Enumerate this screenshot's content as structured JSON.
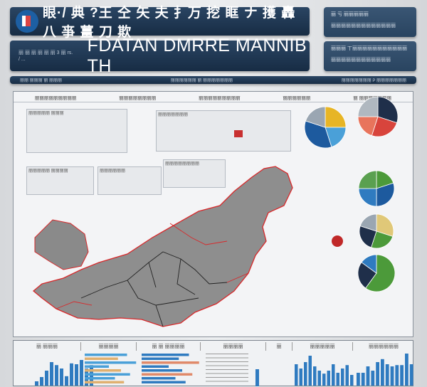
{
  "header": {
    "title": "眼·/ 典 ?王 仝 矢 夫 扌万 挖 眶 ナ 擭 轟 八 亊 薑 刀 欺",
    "subtitle": "FDATAN DMRRE MANNIB TH",
    "subtitle_small": "丽 丽 丽 丽 丽 丽 3 丽 rs. / ...",
    "right_box_1": "丽 亏 丽丽丽丽丽",
    "right_box_1_sub": "丽丽丽丽丽丽丽丽丽丽丽丽丽",
    "right_box_2": "丽丽丽 丅丽丽丽丽丽丽丽丽丽丽丽",
    "right_box_2_sub": "丽丽丽丽丽丽丽丽丽丽丽丽",
    "strip_left": "丽丽 丽丽丽 丽 丽丽丽",
    "strip_mid": "丽丽丽丽丽丽 丽 丽丽丽丽丽丽丽",
    "strip_right": "丽丽丽丽丽丽丽 P 丽丽丽丽丽丽丽"
  },
  "main": {
    "headers": [
      "丽丽丽丽丽丽丽丽丽",
      "丽丽丽丽丽丽丽丽",
      "丽丽丽丽丽丽丽丽丽",
      "丽丽丽丽丽丽",
      "丽 丽丽丽丽丽丽丽"
    ],
    "boxes": [
      "丽丽丽丽丽 丽丽丽",
      "丽丽丽丽丽丽丽",
      "丽丽丽丽丽 丽丽丽丽",
      "丽丽丽丽丽丽",
      "丽丽丽丽丽丽丽丽"
    ]
  },
  "colors": {
    "navy": "#1e3550",
    "map": "#8e8e8e",
    "border": "#d8282a",
    "pie": [
      "#e7b525",
      "#2f7bc0",
      "#1d5a9e",
      "#9aa6b2",
      "#1f2f4a",
      "#d8443c",
      "#4c9a3a",
      "#e0c878"
    ]
  },
  "pies": [
    {
      "values": [
        25,
        20,
        35,
        20
      ],
      "colors": [
        "#e7b525",
        "#4aa0d8",
        "#1d5a9e",
        "#9aa6b2"
      ]
    },
    {
      "values": [
        30,
        25,
        20,
        25
      ],
      "colors": [
        "#1f2f4a",
        "#d8443c",
        "#e8745c",
        "#b0b8c0"
      ]
    },
    {
      "values": [
        20,
        30,
        25,
        25
      ],
      "colors": [
        "#4c9a3a",
        "#1d5a9e",
        "#2f7bc0",
        "#5aa050"
      ]
    },
    {
      "values": [
        30,
        25,
        25,
        20
      ],
      "colors": [
        "#e0c878",
        "#4c9a3a",
        "#1f2f4a",
        "#9aa6b2"
      ]
    },
    {
      "values": [
        60,
        25,
        15
      ],
      "colors": [
        "#4c9a3a",
        "#1f2f4a",
        "#2f7bc0"
      ]
    }
  ],
  "bottom": {
    "headers": [
      "丽 丽丽丽",
      "丽丽丽丽",
      "丽 丽 丽丽丽丽",
      "丽丽丽丽",
      "丽",
      "丽丽丽丽丽",
      "丽丽丽丽丽丽"
    ],
    "chart1": [
      10,
      20,
      35,
      55,
      48,
      40,
      22,
      52,
      50,
      60,
      40,
      48
    ],
    "chart2": [
      50,
      40,
      55,
      70,
      45,
      35,
      28,
      35,
      50,
      30,
      40,
      48,
      25
    ],
    "chart3": [
      30,
      30,
      45,
      35,
      55,
      62,
      50,
      45,
      48,
      48,
      75,
      50
    ],
    "hbars": [
      70,
      55,
      85,
      40,
      60,
      75,
      50,
      65
    ]
  }
}
